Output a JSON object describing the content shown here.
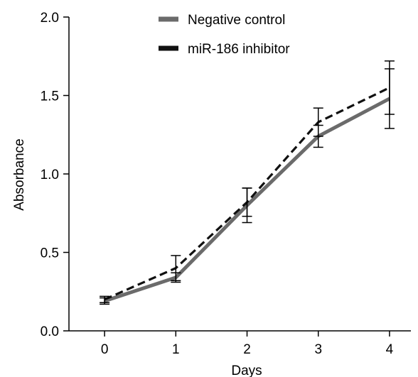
{
  "chart_data": {
    "type": "line",
    "title": "",
    "xlabel": "Days",
    "ylabel": "Absorbance",
    "x": [
      0,
      1,
      2,
      3,
      4
    ],
    "x_tick_labels": [
      "0",
      "1",
      "2",
      "3",
      "4"
    ],
    "y_tick_labels": [
      "0.0",
      "0.5",
      "1.0",
      "1.5",
      "2.0"
    ],
    "xlim": [
      -0.5,
      4.3
    ],
    "ylim": [
      0.0,
      2.0
    ],
    "grid": false,
    "legend_position": "top-center",
    "series": [
      {
        "name": "Negative control",
        "values": [
          0.19,
          0.34,
          0.8,
          1.24,
          1.48
        ],
        "errors": [
          0.02,
          0.03,
          0.11,
          0.07,
          0.19
        ],
        "color": "#6b6b6b",
        "line_style": "solid"
      },
      {
        "name": "miR-186 inhibitor",
        "values": [
          0.2,
          0.4,
          0.82,
          1.33,
          1.55
        ],
        "errors": [
          0.02,
          0.08,
          0.09,
          0.09,
          0.17
        ],
        "color": "#111111",
        "line_style": "dashed"
      }
    ]
  }
}
